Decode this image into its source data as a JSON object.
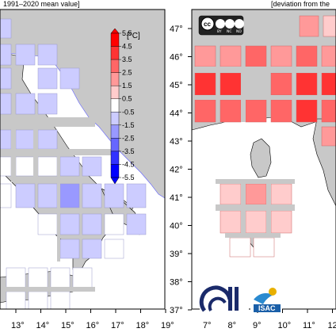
{
  "header": {
    "left_caption": "1991–2020 mean value]",
    "right_caption": "[deviation from the"
  },
  "left_map": {
    "x_ticks": [
      "13°",
      "14°",
      "15°",
      "16°",
      "17°",
      "18°",
      "19°"
    ]
  },
  "right_map": {
    "x_ticks": [
      "7°",
      "8°",
      "9°",
      "10°",
      "11°",
      "12°"
    ],
    "y_ticks": [
      "47°",
      "46°",
      "45°",
      "44°",
      "43°",
      "42°",
      "41°",
      "40°",
      "39°",
      "38°",
      "37°"
    ]
  },
  "colorbar": {
    "unit": "[°C]",
    "labels": [
      "5.5",
      "4.5",
      "3.5",
      "2.5",
      "1.5",
      "0.5",
      "-0.5",
      "-1.5",
      "-2.5",
      "-3.5",
      "-4.5",
      "-5.5"
    ],
    "colors": [
      "#ff0000",
      "#ff3333",
      "#ff6666",
      "#ff9999",
      "#ffcccc",
      "#ffffff",
      "#ccccff",
      "#9999ff",
      "#6666ff",
      "#3333ff",
      "#0000ff"
    ]
  },
  "license_badge": {
    "symbols": [
      "cc",
      "BY",
      "NC",
      "ND"
    ]
  },
  "logos": {
    "isac_label": "ISAC"
  },
  "colors": {
    "land": "#c8c8c8",
    "sea": "#ffffff",
    "grid": "#c8c8c8"
  }
}
